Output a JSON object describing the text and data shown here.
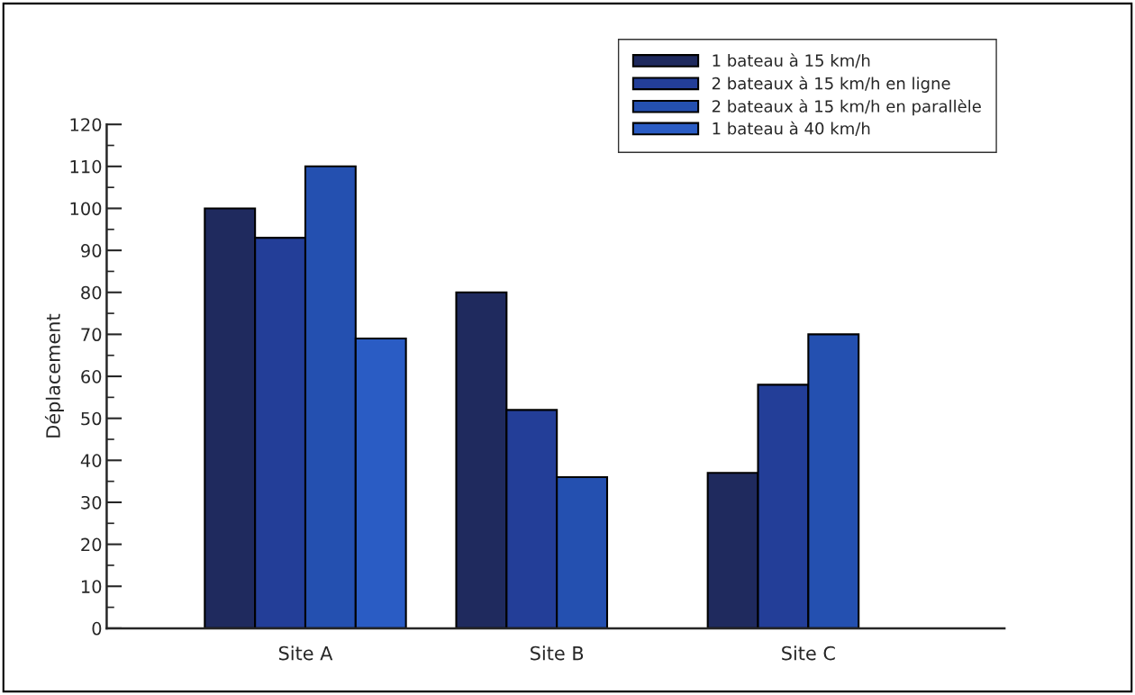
{
  "chart_data": {
    "type": "bar",
    "ylabel": "Déplacement",
    "categories": [
      "Site A",
      "Site B",
      "Site C"
    ],
    "series": [
      {
        "name": "1 bateau à 15 km/h",
        "color": "#1f2a5e",
        "values": [
          100,
          80,
          37
        ]
      },
      {
        "name": "2 bateaux à 15 km/h en ligne",
        "color": "#233e98",
        "values": [
          93,
          52,
          58
        ]
      },
      {
        "name": "2 bateaux à 15 km/h en parallèle",
        "color": "#2450b0",
        "values": [
          110,
          36,
          70
        ]
      },
      {
        "name": "1 bateau à 40 km/h",
        "color": "#2a5cc4",
        "values": [
          69,
          null,
          null
        ]
      }
    ],
    "ylim": [
      0,
      120
    ],
    "yticks": [
      0,
      10,
      20,
      30,
      40,
      50,
      60,
      70,
      80,
      90,
      100,
      110,
      120
    ],
    "grid": false,
    "legend": "top right"
  }
}
